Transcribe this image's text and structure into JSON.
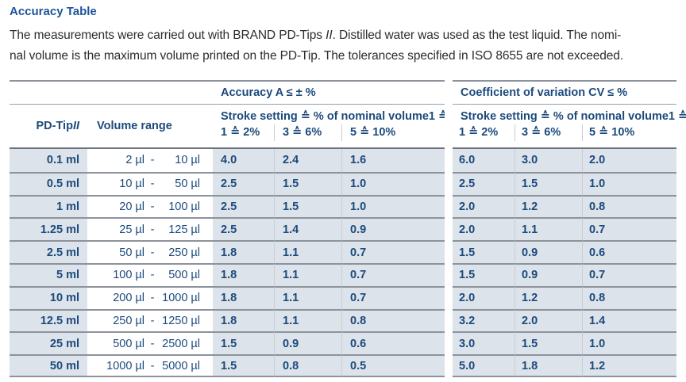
{
  "page": {
    "title": "Accuracy Table",
    "intro": {
      "line1_pre": "The measurements were carried out with BRAND PD-Tips ",
      "line1_italic": "II",
      "line1_post": ". Distilled water was used as the test liquid. The nomi-",
      "line2": "nal volume is the maximum volume printed on the PD-Tip. The tolerances specified in ISO 8655 are not exceeded."
    }
  },
  "table": {
    "group_headers": {
      "accuracy": "Accuracy A ≤ ± %",
      "cv": "Coefficient of variation CV ≤ %"
    },
    "col_headers": {
      "pdtip_pre": "PD-Tip ",
      "pdtip_italic": "II",
      "volume_range": "Volume range",
      "stroke_setting": "Stroke setting ≙ % of nominal volume1 ≙",
      "stroke_levels": [
        "1 ≙ 2%",
        "3 ≙ 6%",
        "5 ≙ 10%"
      ]
    },
    "range_separator": "-",
    "rows": [
      {
        "tip": "0.1 ml",
        "range_low": "2 µl",
        "range_high": "10 µl",
        "accuracy": [
          "4.0",
          "2.4",
          "1.6"
        ],
        "cv": [
          "6.0",
          "3.0",
          "2.0"
        ]
      },
      {
        "tip": "0.5 ml",
        "range_low": "10 µl",
        "range_high": "50 µl",
        "accuracy": [
          "2.5",
          "1.5",
          "1.0"
        ],
        "cv": [
          "2.5",
          "1.5",
          "1.0"
        ]
      },
      {
        "tip": "1 ml",
        "range_low": "20 µl",
        "range_high": "100 µl",
        "accuracy": [
          "2.5",
          "1.5",
          "1.0"
        ],
        "cv": [
          "2.0",
          "1.2",
          "0.8"
        ]
      },
      {
        "tip": "1.25 ml",
        "range_low": "25 µl",
        "range_high": "125 µl",
        "accuracy": [
          "2.5",
          "1.4",
          "0.9"
        ],
        "cv": [
          "2.0",
          "1.1",
          "0.7"
        ]
      },
      {
        "tip": "2.5 ml",
        "range_low": "50 µl",
        "range_high": "250 µl",
        "accuracy": [
          "1.8",
          "1.1",
          "0.7"
        ],
        "cv": [
          "1.5",
          "0.9",
          "0.6"
        ]
      },
      {
        "tip": "5 ml",
        "range_low": "100 µl",
        "range_high": "500 µl",
        "accuracy": [
          "1.8",
          "1.1",
          "0.7"
        ],
        "cv": [
          "1.5",
          "0.9",
          "0.7"
        ]
      },
      {
        "tip": "10 ml",
        "range_low": "200 µl",
        "range_high": "1000 µl",
        "accuracy": [
          "1.8",
          "1.1",
          "0.7"
        ],
        "cv": [
          "2.0",
          "1.2",
          "0.8"
        ]
      },
      {
        "tip": "12.5 ml",
        "range_low": "250 µl",
        "range_high": "1250 µl",
        "accuracy": [
          "1.8",
          "1.1",
          "0.8"
        ],
        "cv": [
          "3.2",
          "2.0",
          "1.4"
        ]
      },
      {
        "tip": "25 ml",
        "range_low": "500 µl",
        "range_high": "2500 µl",
        "accuracy": [
          "1.5",
          "0.9",
          "0.6"
        ],
        "cv": [
          "3.0",
          "1.5",
          "1.0"
        ]
      },
      {
        "tip": "50 ml",
        "range_low": "1000 µl",
        "range_high": "5000 µl",
        "accuracy": [
          "1.5",
          "0.8",
          "0.5"
        ],
        "cv": [
          "5.0",
          "1.8",
          "1.2"
        ]
      }
    ]
  },
  "colors": {
    "title_blue": "#1d5499",
    "table_navy": "#1c4a7c",
    "row_background": "#dce3ea",
    "row_line": "#8d939b",
    "header_line": "#6e747b",
    "faint_vertical_line": "#c8cdd4",
    "body_text": "#2d2d2d"
  }
}
